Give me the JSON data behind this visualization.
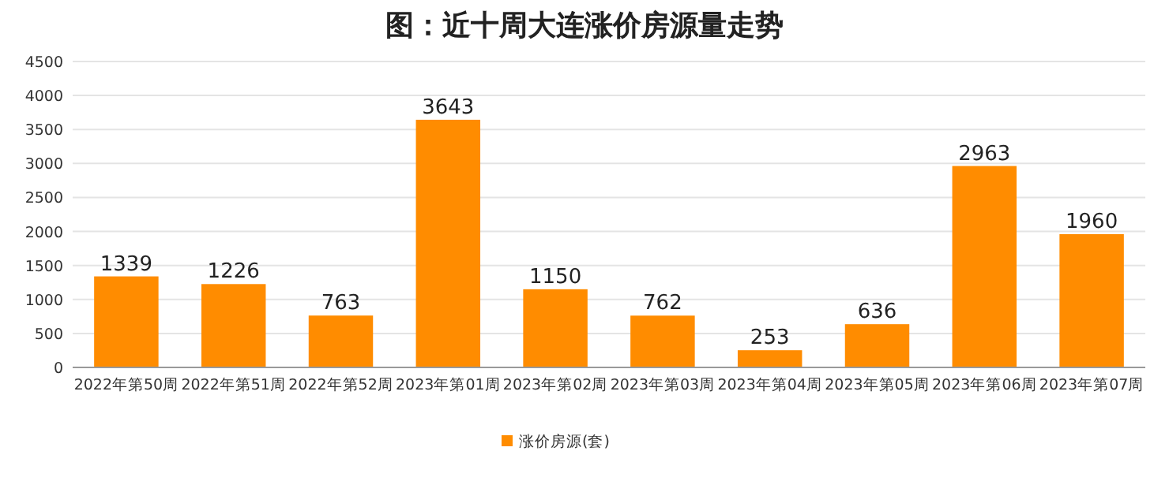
{
  "chart_data": {
    "type": "bar",
    "title": "图：近十周大连涨价房源量走势",
    "categories": [
      "2022年第50周",
      "2022年第51周",
      "2022年第52周",
      "2023年第01周",
      "2023年第02周",
      "2023年第03周",
      "2023年第04周",
      "2023年第05周",
      "2023年第06周",
      "2023年第07周"
    ],
    "series": [
      {
        "name": "涨价房源(套)",
        "color": "#ff8c00",
        "values": [
          1339,
          1226,
          763,
          3643,
          1150,
          762,
          253,
          636,
          2963,
          1960
        ]
      }
    ],
    "ylim": [
      0,
      4500
    ],
    "yticks": [
      0,
      500,
      1000,
      1500,
      2000,
      2500,
      3000,
      3500,
      4000,
      4500
    ],
    "grid": "y",
    "legend": "bottom",
    "data_labels": true
  }
}
